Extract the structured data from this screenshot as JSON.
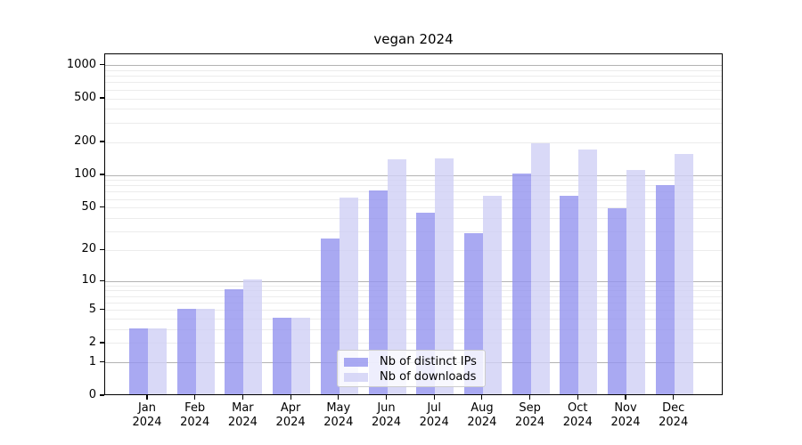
{
  "title": "vegan 2024",
  "chart_data": {
    "type": "bar",
    "title": "vegan 2024",
    "categories": [
      "Jan",
      "Feb",
      "Mar",
      "Apr",
      "May",
      "Jun",
      "Jul",
      "Aug",
      "Sep",
      "Oct",
      "Nov",
      "Dec"
    ],
    "year": "2024",
    "series": [
      {
        "name": "Nb of distinct IPs",
        "key": "ips",
        "values": [
          3,
          5,
          8,
          4,
          25,
          70,
          44,
          28,
          100,
          63,
          48,
          78
        ]
      },
      {
        "name": "Nb of downloads",
        "key": "downloads",
        "values": [
          3,
          5,
          10,
          4,
          60,
          135,
          138,
          62,
          188,
          166,
          107,
          150
        ]
      }
    ],
    "y_ticks": [
      0,
      1,
      2,
      5,
      10,
      20,
      50,
      100,
      200,
      500,
      1000
    ],
    "y_scale": "log10(value+1)",
    "ylim": [
      0,
      1270
    ],
    "xlabel": "",
    "ylabel": "",
    "grid": true,
    "legend_position": "lower center"
  },
  "legend": {
    "items": [
      {
        "label": "Nb of distinct IPs",
        "key": "ips"
      },
      {
        "label": "Nb of downloads",
        "key": "downloads"
      }
    ]
  },
  "colors": {
    "ips": "rgba(148,148,239,0.8)",
    "downloads": "rgba(208,208,245,0.8)",
    "grid_major": "#b3b3b3",
    "grid_minor": "#ececec",
    "axis_frame": "#000000",
    "legend_border": "#cccccc",
    "legend_background": "rgba(255,255,255,0.8)"
  }
}
